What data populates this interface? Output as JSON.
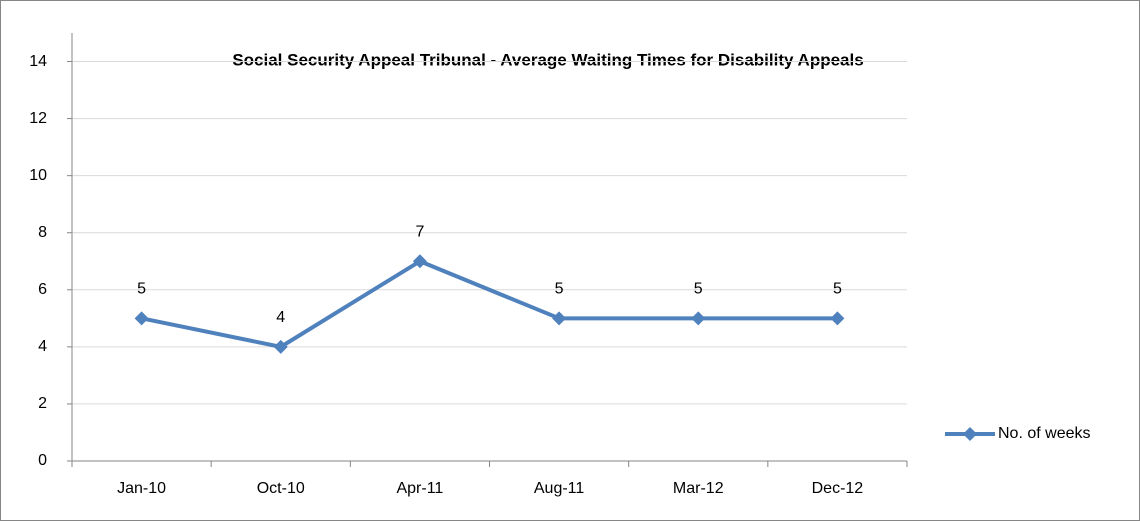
{
  "chart_data": {
    "type": "line",
    "title": "Social Security Appeal Tribunal - Average Waiting Times for Disability Appeals",
    "categories": [
      "Jan-10",
      "Oct-10",
      "Apr-11",
      "Aug-11",
      "Mar-12",
      "Dec-12"
    ],
    "series": [
      {
        "name": "No. of weeks",
        "color": "#4f81bd",
        "values": [
          5,
          4,
          7,
          5,
          5,
          5
        ]
      }
    ],
    "ylim": [
      0,
      15
    ],
    "yticks": [
      0,
      2,
      4,
      6,
      8,
      10,
      12,
      14
    ],
    "grid": true,
    "legend": "right"
  }
}
